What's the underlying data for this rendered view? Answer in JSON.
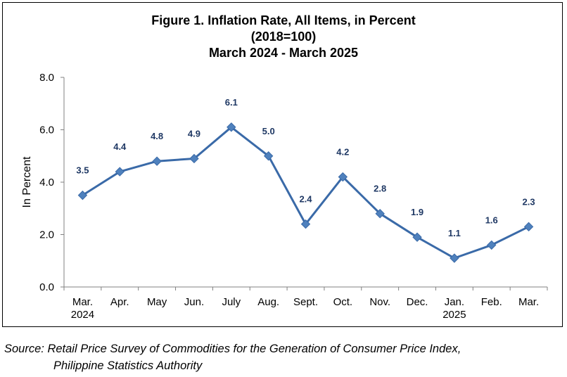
{
  "chart_data": {
    "type": "line",
    "title": [
      "Figure 1. Inflation Rate, All Items, in Percent",
      "(2018=100)",
      "March 2024 - March 2025"
    ],
    "ylabel": "In Percent",
    "xlabel": "",
    "ylim": [
      0,
      8
    ],
    "yticks": [
      "0.0",
      "2.0",
      "4.0",
      "6.0",
      "8.0"
    ],
    "grid": false,
    "categories": [
      [
        "Mar.",
        "2024"
      ],
      [
        "Apr."
      ],
      [
        "May"
      ],
      [
        "Jun."
      ],
      [
        "July"
      ],
      [
        "Aug."
      ],
      [
        "Sept."
      ],
      [
        "Oct."
      ],
      [
        "Nov."
      ],
      [
        "Dec."
      ],
      [
        "Jan.",
        "2025"
      ],
      [
        "Feb."
      ],
      [
        "Mar."
      ]
    ],
    "series": [
      {
        "values": [
          3.5,
          4.4,
          4.8,
          4.9,
          6.1,
          5.0,
          2.4,
          4.2,
          2.8,
          1.9,
          1.1,
          1.6,
          2.3
        ],
        "labels": [
          "3.5",
          "4.4",
          "4.8",
          "4.9",
          "6.1",
          "5.0",
          "2.4",
          "4.2",
          "2.8",
          "1.9",
          "1.1",
          "1.6",
          "2.3"
        ],
        "color": "#3a6aa8",
        "marker_color": "#4f81bd",
        "marker": "diamond"
      }
    ]
  },
  "source": {
    "line1": "Source: Retail Price Survey of Commodities for the Generation of Consumer Price Index,",
    "line2": "Philippine Statistics Authority"
  }
}
